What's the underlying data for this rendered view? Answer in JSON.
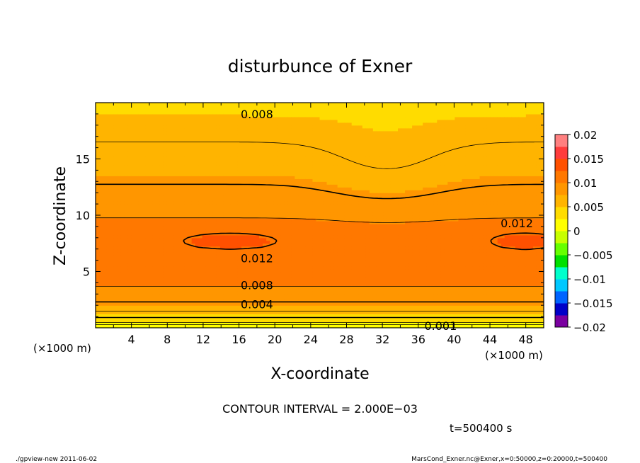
{
  "chart_data": {
    "type": "contour",
    "title": "disturbunce of Exner",
    "xlabel": "X-coordinate",
    "ylabel": "Z-coordinate",
    "x_unit_label": "(×1000 m)",
    "xlim": [
      0,
      50
    ],
    "ylim": [
      0,
      20
    ],
    "x_ticks": [
      4,
      8,
      12,
      16,
      20,
      24,
      28,
      32,
      36,
      40,
      44,
      48
    ],
    "y_ticks": [
      5,
      10,
      15
    ],
    "colorbar": {
      "min": -0.02,
      "max": 0.02,
      "tick_labels": [
        "0.02",
        "0.015",
        "0.01",
        "0.005",
        "0",
        "−0.005",
        "−0.01",
        "−0.015",
        "−0.02"
      ],
      "tick_values": [
        0.02,
        0.015,
        0.01,
        0.005,
        0,
        -0.005,
        -0.01,
        -0.015,
        -0.02
      ]
    },
    "contour_labels": [
      {
        "text": "0.008",
        "x": 18,
        "z": 19.0
      },
      {
        "text": "0.012",
        "x": 47,
        "z": 9.3
      },
      {
        "text": "0.012",
        "x": 18,
        "z": 6.2
      },
      {
        "text": "0.008",
        "x": 18,
        "z": 3.8
      },
      {
        "text": "0.004",
        "x": 18,
        "z": 2.1
      },
      {
        "text": "0.001",
        "x": 38.5,
        "z": 0.2
      }
    ],
    "contour_interval_text": "CONTOUR INTERVAL = 2.000E−03",
    "time_text": "t=500400  s"
  },
  "footer": {
    "left": "./gpview-new   2011-06-02",
    "right": "MarsCond_Exner.nc@Exner,x=0:50000,z=0:20000,t=500400"
  },
  "colors": {
    "levels": [
      "#7a00a0",
      "#0000c8",
      "#0064ff",
      "#00c8ff",
      "#00ffcc",
      "#00e000",
      "#66ff00",
      "#c8ff00",
      "#ffff00",
      "#ffdc00",
      "#ffb400",
      "#ff9600",
      "#ff7800",
      "#ff5000",
      "#ff3c3c",
      "#ff8080"
    ]
  }
}
